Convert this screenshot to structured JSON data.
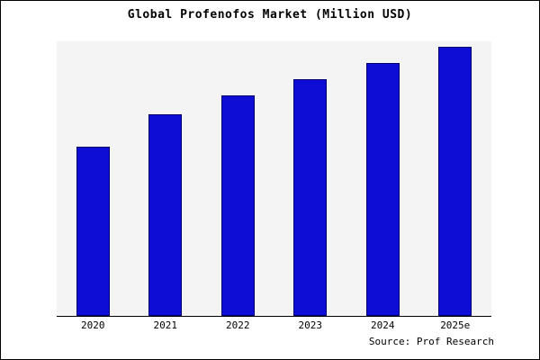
{
  "chart_data": {
    "type": "bar",
    "title": "Global Profenofos Market (Million USD)",
    "categories": [
      "2020",
      "2021",
      "2022",
      "2023",
      "2024",
      "2025e"
    ],
    "values": [
      63,
      75,
      82,
      88,
      94,
      100
    ],
    "xlabel": "",
    "ylabel": "",
    "ylim": [
      0,
      102
    ],
    "grid": false,
    "legend": false,
    "bar_color": "#0d0dd6",
    "bar_border_color": "#00006e",
    "plot_background": "#f4f4f4"
  },
  "source": "Source: Prof Research"
}
